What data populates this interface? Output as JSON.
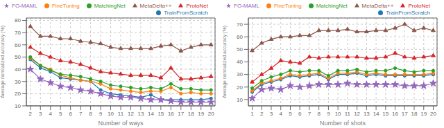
{
  "chart_data": [
    {
      "type": "line",
      "x_label": "Number of ways",
      "y_label": "Average normalized accuracy (%)",
      "x": [
        2,
        3,
        4,
        5,
        6,
        7,
        8,
        9,
        10,
        11,
        12,
        13,
        14,
        15,
        16,
        17,
        18,
        19,
        20
      ],
      "xlim": [
        1.6,
        20.4
      ],
      "xticks": [
        2,
        3,
        4,
        5,
        6,
        7,
        8,
        9,
        10,
        11,
        12,
        13,
        14,
        15,
        16,
        17,
        18,
        19,
        20
      ],
      "ylim": [
        10,
        82
      ],
      "yticks": [
        10,
        20,
        30,
        40,
        50,
        60,
        70,
        80
      ],
      "grid": true,
      "legend": "upper right",
      "series": [
        {
          "name": "TrainFromScratch",
          "color": "#1f77b4",
          "marker": "circle",
          "values": [
            48,
            41,
            38,
            33,
            32,
            31,
            30,
            23,
            20,
            19,
            18,
            17,
            19,
            15,
            15,
            15,
            15,
            15,
            16
          ],
          "std": [
            2,
            2,
            2,
            2,
            2,
            2,
            2,
            2,
            2,
            2,
            2,
            2,
            2,
            2,
            2,
            2,
            2,
            2,
            2
          ]
        },
        {
          "name": "FineTuning",
          "color": "#ff7f0e",
          "marker": "circle",
          "values": [
            49,
            43,
            40,
            35,
            33,
            31,
            30,
            28,
            24,
            23,
            22,
            21,
            22,
            22,
            25,
            20,
            21,
            20,
            20
          ],
          "std": [
            3,
            3,
            3,
            3,
            3,
            3,
            3,
            3,
            3,
            3,
            3,
            3,
            3,
            3,
            3,
            3,
            3,
            3,
            3
          ]
        },
        {
          "name": "MatchingNet",
          "color": "#2ca02c",
          "marker": "circle",
          "values": [
            50,
            43,
            39,
            36,
            35,
            34,
            32,
            30,
            27,
            26,
            25,
            24,
            25,
            24,
            28,
            24,
            24,
            23,
            23
          ],
          "std": [
            3,
            3,
            3,
            3,
            3,
            3,
            3,
            3,
            3,
            3,
            3,
            3,
            3,
            3,
            3,
            3,
            3,
            3,
            3
          ]
        },
        {
          "name": "ProtoNet",
          "color": "#d62728",
          "marker": "triangle",
          "values": [
            58,
            53,
            50,
            47,
            46,
            44,
            41,
            38,
            37,
            36,
            35,
            35,
            35,
            33,
            41,
            32,
            32,
            33,
            34
          ],
          "std": [
            5,
            5,
            5,
            5,
            5,
            5,
            5,
            5,
            5,
            5,
            5,
            5,
            5,
            5,
            5,
            5,
            5,
            5,
            5
          ]
        },
        {
          "name": "FO-MAML",
          "color": "#9467bd",
          "marker": "star",
          "values": [
            40,
            32,
            29,
            26,
            25,
            23,
            22,
            20,
            18,
            17,
            17,
            16,
            15,
            15,
            14,
            13,
            13,
            13,
            13
          ],
          "std": [
            4,
            4,
            4,
            4,
            3,
            3,
            3,
            3,
            3,
            3,
            3,
            3,
            3,
            3,
            3,
            3,
            3,
            3,
            3
          ]
        },
        {
          "name": "MetaDelta++",
          "color": "#8c564b",
          "marker": "triangle",
          "values": [
            75,
            67,
            67,
            65,
            65,
            63,
            62,
            61,
            58,
            57,
            57,
            57,
            57,
            59,
            60,
            55,
            58,
            60,
            60
          ],
          "std": [
            6,
            6,
            5,
            5,
            5,
            5,
            5,
            5,
            5,
            5,
            5,
            5,
            5,
            5,
            5,
            5,
            5,
            5,
            5
          ]
        }
      ]
    },
    {
      "type": "line",
      "x_label": "Number of shots",
      "y_label": "Average normalized accuracy (%)",
      "x": [
        1,
        2,
        3,
        4,
        5,
        6,
        7,
        8,
        9,
        10,
        11,
        12,
        13,
        14,
        15,
        16,
        17,
        18,
        19,
        20
      ],
      "xlim": [
        0.6,
        20.4
      ],
      "xticks": [
        1,
        2,
        3,
        4,
        5,
        6,
        7,
        8,
        9,
        10,
        11,
        12,
        13,
        14,
        15,
        16,
        17,
        18,
        19,
        20
      ],
      "ylim": [
        5,
        75
      ],
      "yticks": [
        10,
        20,
        30,
        40,
        50,
        60,
        70
      ],
      "grid": true,
      "legend": "upper right",
      "series": [
        {
          "name": "TrainFromScratch",
          "color": "#1f77b4",
          "marker": "circle",
          "values": [
            16,
            22,
            24,
            26,
            29,
            28,
            29,
            30,
            26,
            30,
            30,
            31,
            29,
            30,
            29,
            29,
            29,
            29,
            29,
            30
          ],
          "std": [
            2,
            2,
            2,
            2,
            2,
            2,
            2,
            2,
            2,
            2,
            2,
            2,
            2,
            2,
            2,
            2,
            2,
            2,
            2,
            2
          ]
        },
        {
          "name": "FineTuning",
          "color": "#ff7f0e",
          "marker": "circle",
          "values": [
            17,
            23,
            25,
            27,
            30,
            29,
            30,
            31,
            27,
            31,
            31,
            32,
            30,
            31,
            30,
            30,
            30,
            30,
            30,
            31
          ],
          "std": [
            2,
            2,
            2,
            2,
            2,
            2,
            2,
            2,
            2,
            2,
            2,
            2,
            2,
            2,
            2,
            2,
            2,
            2,
            2,
            2
          ]
        },
        {
          "name": "MatchingNet",
          "color": "#2ca02c",
          "marker": "circle",
          "values": [
            19,
            25,
            28,
            30,
            33,
            32,
            33,
            33,
            29,
            33,
            33,
            34,
            32,
            33,
            33,
            35,
            33,
            32,
            33,
            33
          ],
          "std": [
            3,
            3,
            3,
            3,
            3,
            3,
            3,
            3,
            3,
            3,
            3,
            3,
            3,
            3,
            3,
            3,
            3,
            3,
            3,
            3
          ]
        },
        {
          "name": "ProtoNet",
          "color": "#d62728",
          "marker": "triangle",
          "values": [
            24,
            30,
            35,
            41,
            40,
            39,
            44,
            43,
            44,
            44,
            44,
            44,
            43,
            43,
            44,
            47,
            44,
            43,
            44,
            45
          ],
          "std": [
            6,
            5,
            5,
            5,
            5,
            5,
            5,
            5,
            5,
            5,
            5,
            5,
            5,
            5,
            5,
            5,
            5,
            5,
            5,
            5
          ]
        },
        {
          "name": "FO-MAML",
          "color": "#9467bd",
          "marker": "star",
          "values": [
            11,
            18,
            19,
            18,
            21,
            20,
            21,
            22,
            22,
            22,
            23,
            22,
            22,
            22,
            22,
            22,
            21,
            21,
            21,
            23
          ],
          "std": [
            4,
            4,
            3,
            3,
            3,
            3,
            3,
            3,
            3,
            3,
            3,
            3,
            3,
            3,
            3,
            3,
            3,
            3,
            3,
            3
          ]
        },
        {
          "name": "MetaDelta++",
          "color": "#8c564b",
          "marker": "triangle",
          "values": [
            49,
            55,
            58,
            60,
            60,
            61,
            61,
            65,
            65,
            65,
            66,
            64,
            64,
            65,
            65,
            67,
            70,
            65,
            67,
            65
          ],
          "std": [
            6,
            5,
            5,
            5,
            5,
            5,
            5,
            5,
            5,
            5,
            5,
            5,
            5,
            5,
            5,
            5,
            5,
            5,
            5,
            5
          ]
        }
      ]
    }
  ]
}
